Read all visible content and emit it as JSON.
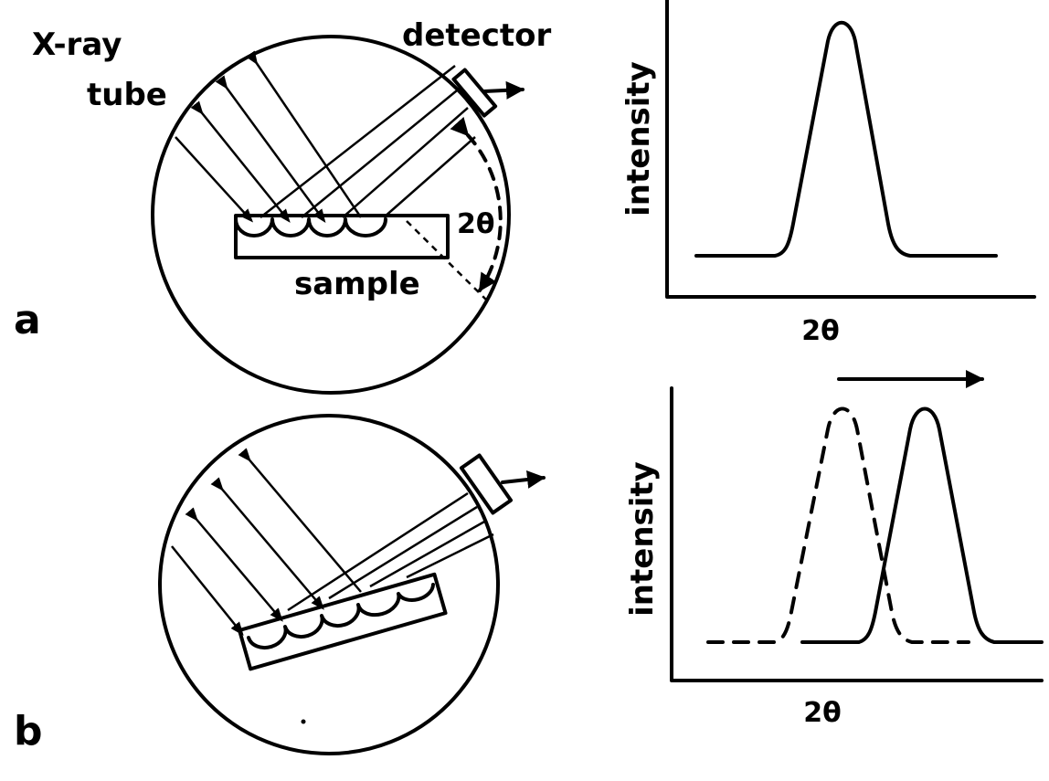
{
  "panels": [
    {
      "label": "a",
      "diagram": {
        "source": [
          "X-ray",
          "tube"
        ],
        "detector": "detector",
        "angle": "2θ",
        "sample": "sample"
      },
      "plot": {
        "y_label": "intensity",
        "x_label": "2θ"
      }
    },
    {
      "label": "b",
      "plot": {
        "y_label": "intensity",
        "x_label": "2θ"
      }
    }
  ]
}
